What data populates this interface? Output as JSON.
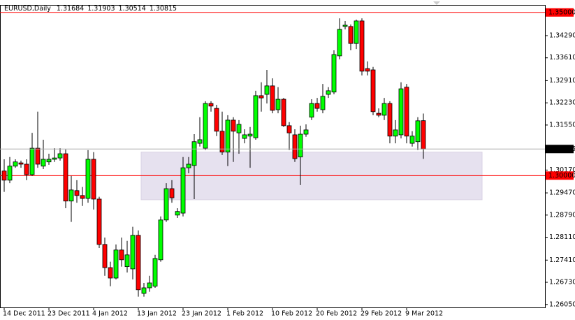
{
  "chart_data": {
    "type": "candlestick",
    "title": "EURUSD,Daily",
    "categories": [
      "14 Dec 2011",
      null,
      null,
      null,
      null,
      null,
      null,
      null,
      "23 Dec 2011",
      null,
      null,
      null,
      null,
      null,
      null,
      null,
      "4 Jan 2012",
      null,
      null,
      null,
      null,
      null,
      null,
      null,
      "13 Jan 2012",
      null,
      null,
      null,
      null,
      null,
      null,
      null,
      "23 Jan 2012",
      null,
      null,
      null,
      null,
      null,
      null,
      null,
      "1 Feb 2012",
      null,
      null,
      null,
      null,
      null,
      null,
      null,
      "10 Feb 2012",
      null,
      null,
      null,
      null,
      null,
      null,
      null,
      "20 Feb 2012",
      null,
      null,
      null,
      null,
      null,
      null,
      null,
      "29 Feb 2012",
      null,
      null,
      null,
      null,
      null,
      null,
      null,
      "9 Mar 2012",
      null,
      null,
      null
    ],
    "open": [
      1.3014,
      1.2986,
      1.3029,
      1.3039,
      1.3035,
      1.3003,
      1.3084,
      1.3029,
      1.3042,
      1.305,
      1.3054,
      1.3067,
      1.2922,
      1.2954,
      1.2939,
      1.293,
      1.305,
      1.2928,
      1.2789,
      1.2718,
      1.2686,
      1.2772,
      1.2721,
      1.2714,
      1.2817,
      1.2639,
      1.2656,
      1.2661,
      1.2742,
      1.2864,
      1.296,
      1.2879,
      1.2885,
      1.3024,
      1.3031,
      1.3099,
      1.3084,
      1.3221,
      1.3206,
      1.3136,
      1.3072,
      1.317,
      1.3131,
      1.3114,
      1.3121,
      1.3116,
      1.3245,
      1.3249,
      1.3275,
      1.3202,
      1.3234,
      1.3153,
      1.3125,
      1.3057,
      1.3127,
      1.3179,
      1.3221,
      1.3202,
      1.3249,
      1.3256,
      1.3367,
      1.3457,
      1.3457,
      1.3405,
      1.3474,
      1.3328,
      1.3324,
      1.3191,
      1.3185,
      1.3221,
      1.3121,
      1.3125,
      1.3271,
      1.3099,
      1.3104,
      1.31684
    ],
    "high": [
      1.305,
      1.3057,
      1.305,
      1.3046,
      1.305,
      1.3131,
      1.3196,
      1.311,
      1.3067,
      1.3084,
      1.3084,
      1.308,
      1.2999,
      1.2986,
      1.2965,
      1.3078,
      1.3072,
      1.2935,
      1.281,
      1.2736,
      1.2789,
      1.281,
      1.28,
      1.2843,
      1.2832,
      1.2671,
      1.2693,
      1.2757,
      1.2875,
      1.2977,
      1.2986,
      1.29,
      1.3057,
      1.3057,
      1.3127,
      1.3179,
      1.3228,
      1.3228,
      1.3217,
      1.3196,
      1.3185,
      1.3179,
      1.317,
      1.3142,
      1.3149,
      1.326,
      1.3286,
      1.3324,
      1.3298,
      1.3271,
      1.3238,
      1.3164,
      1.3142,
      1.3153,
      1.3157,
      1.3234,
      1.3238,
      1.3281,
      1.3271,
      1.3384,
      1.3482,
      1.3474,
      1.3463,
      1.3478,
      1.3482,
      1.335,
      1.3333,
      1.3206,
      1.3238,
      1.3228,
      1.317,
      1.3286,
      1.3281,
      1.3136,
      1.3179,
      1.31903
    ],
    "low": [
      1.295,
      1.2977,
      1.3024,
      1.3024,
      1.2986,
      1.2999,
      1.3024,
      1.302,
      1.3033,
      1.3042,
      1.3046,
      1.29,
      1.2858,
      1.2917,
      1.2907,
      1.2917,
      1.2896,
      1.2778,
      1.2693,
      1.2661,
      1.2682,
      1.2721,
      1.2703,
      1.2682,
      1.2629,
      1.2629,
      1.2644,
      1.2656,
      1.2736,
      1.2858,
      1.2917,
      1.287,
      1.2875,
      1.3007,
      1.2928,
      1.3089,
      1.3078,
      1.3196,
      1.3121,
      1.3063,
      1.3029,
      1.3042,
      1.3067,
      1.3099,
      1.3024,
      1.311,
      1.3196,
      1.3221,
      1.3191,
      1.3191,
      1.3149,
      1.3078,
      1.3042,
      1.2971,
      1.3119,
      1.317,
      1.3196,
      1.3191,
      1.3238,
      1.3249,
      1.3356,
      1.3448,
      1.3384,
      1.3388,
      1.3307,
      1.3307,
      1.3185,
      1.3179,
      1.317,
      1.3099,
      1.3099,
      1.3114,
      1.3099,
      1.3089,
      1.3078,
      1.30514
    ],
    "close": [
      1.2986,
      1.3029,
      1.3042,
      1.3035,
      1.3003,
      1.3084,
      1.3035,
      1.305,
      1.305,
      1.3054,
      1.3067,
      1.2922,
      1.2956,
      1.2939,
      1.293,
      1.305,
      1.2928,
      1.2789,
      1.2718,
      1.2686,
      1.2772,
      1.2742,
      1.2757,
      1.2817,
      1.265,
      1.2656,
      1.2671,
      1.2746,
      1.2864,
      1.296,
      1.2932,
      1.289,
      1.3024,
      1.3035,
      1.3104,
      1.311,
      1.3221,
      1.3213,
      1.3136,
      1.3072,
      1.317,
      1.3136,
      1.3157,
      1.3125,
      1.3127,
      1.3245,
      1.3238,
      1.3275,
      1.32,
      1.3234,
      1.3153,
      1.3131,
      1.3052,
      1.3127,
      1.314,
      1.3221,
      1.3206,
      1.3243,
      1.326,
      1.3371,
      1.3448,
      1.3461,
      1.3405,
      1.3474,
      1.332,
      1.332,
      1.3196,
      1.3185,
      1.3221,
      1.3121,
      1.314,
      1.3266,
      1.3121,
      1.3121,
      1.3168,
      1.30815
    ],
    "up_color": "#00ff00",
    "down_color": "#ff0000",
    "ylim": [
      1.2596,
      1.3521
    ],
    "yticks": [
      {
        "value": 1.3429,
        "label": "1.34290"
      },
      {
        "value": 1.3361,
        "label": "1.33610"
      },
      {
        "value": 1.3291,
        "label": "1.32910"
      },
      {
        "value": 1.3223,
        "label": "1.32230"
      },
      {
        "value": 1.3155,
        "label": "1.31550"
      },
      {
        "value": 1.3017,
        "label": "1.30170"
      },
      {
        "value": 1.2947,
        "label": "1.29470"
      },
      {
        "value": 1.2879,
        "label": "1.28790"
      },
      {
        "value": 1.2811,
        "label": "1.28110"
      },
      {
        "value": 1.2741,
        "label": "1.27410"
      },
      {
        "value": 1.2673,
        "label": "1.26730"
      },
      {
        "value": 1.2605,
        "label": "1.26050"
      }
    ],
    "hlines": [
      {
        "value": 1.35,
        "label": "1.35000",
        "color": "#ff0000"
      },
      {
        "value": 1.3,
        "label": "1.30000",
        "color": "#ff0000"
      }
    ],
    "zone": {
      "low": 1.2926,
      "high": 1.3072,
      "from": 25,
      "to": 85,
      "color": "#e6e1ef"
    }
  }
}
